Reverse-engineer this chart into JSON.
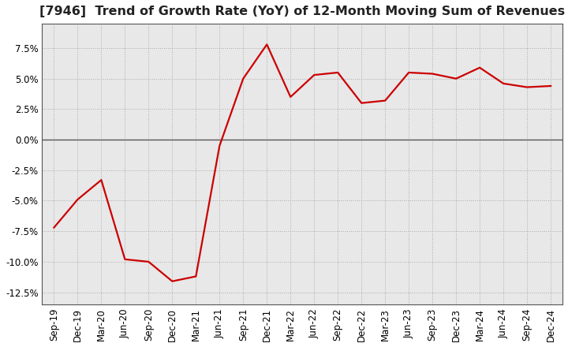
{
  "title": "[7946]  Trend of Growth Rate (YoY) of 12-Month Moving Sum of Revenues",
  "x_labels": [
    "Sep-19",
    "Dec-19",
    "Mar-20",
    "Jun-20",
    "Sep-20",
    "Dec-20",
    "Mar-21",
    "Jun-21",
    "Sep-21",
    "Dec-21",
    "Mar-22",
    "Jun-22",
    "Sep-22",
    "Dec-22",
    "Mar-23",
    "Jun-23",
    "Sep-23",
    "Dec-23",
    "Mar-24",
    "Jun-24",
    "Sep-24",
    "Dec-24"
  ],
  "y_values": [
    -7.2,
    -4.9,
    -3.3,
    -9.8,
    -10.0,
    -11.6,
    -11.2,
    -0.5,
    5.0,
    7.8,
    3.5,
    5.3,
    5.5,
    3.0,
    3.2,
    5.5,
    5.4,
    5.0,
    5.9,
    4.6,
    4.3,
    4.4
  ],
  "line_color": "#cc0000",
  "line_width": 1.6,
  "ylim": [
    -13.5,
    9.5
  ],
  "yticks": [
    -12.5,
    -10.0,
    -7.5,
    -5.0,
    -2.5,
    0.0,
    2.5,
    5.0,
    7.5
  ],
  "title_fontsize": 11.5,
  "tick_fontsize": 8.5,
  "grid_color": "#aaaaaa",
  "plot_bg_color": "#e8e8e8",
  "background_color": "#ffffff",
  "zero_line_color": "#555555",
  "spine_color": "#555555"
}
